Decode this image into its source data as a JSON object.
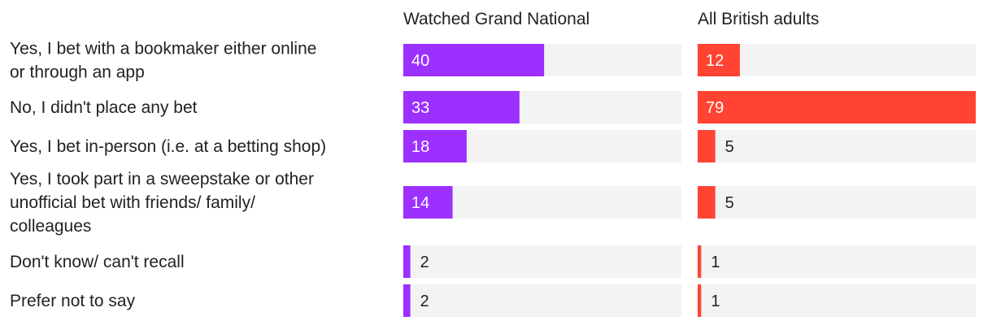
{
  "chart_data": {
    "type": "bar",
    "orientation": "horizontal",
    "title": "",
    "xlabel": "",
    "ylabel": "",
    "xlim": [
      0,
      79
    ],
    "grid": false,
    "legend": "none",
    "categories": [
      [
        "Yes, I bet with a bookmaker either online",
        "or through an app"
      ],
      [
        "No, I didn't place any bet"
      ],
      [
        "Yes, I bet in-person (i.e. at a betting shop)"
      ],
      [
        "Yes, I took part in a sweepstake or other",
        "unofficial bet with friends/ family/",
        "colleagues"
      ],
      [
        "Don't know/ can't recall"
      ],
      [
        "Prefer not to say"
      ]
    ],
    "series": [
      {
        "name": "Watched Grand National",
        "color": "#9b30ff",
        "values": [
          40,
          33,
          18,
          14,
          2,
          2
        ]
      },
      {
        "name": "All British adults",
        "color": "#ff4433",
        "values": [
          12,
          79,
          5,
          5,
          1,
          1
        ]
      }
    ],
    "track_color": "#f3f3f3"
  }
}
